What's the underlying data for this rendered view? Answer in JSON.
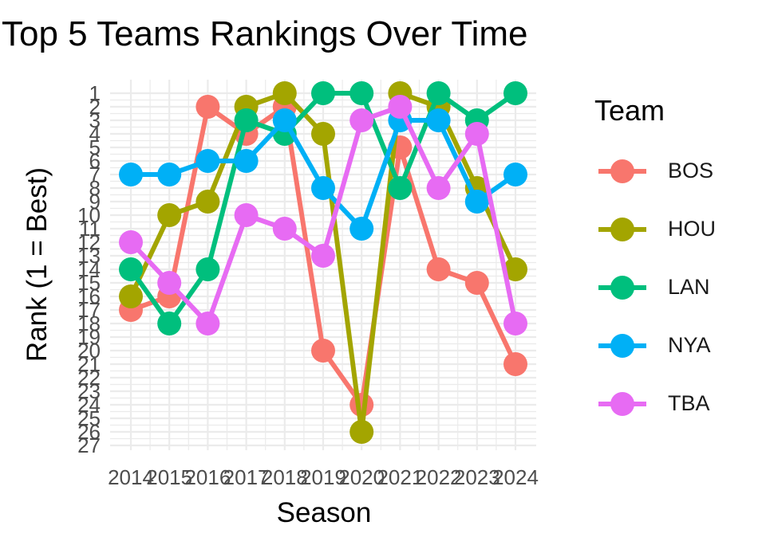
{
  "chart_data": {
    "type": "line",
    "title": "Top 5 Teams Rankings Over Time",
    "xlabel": "Season",
    "ylabel": "Rank (1 = Best)",
    "x": [
      2014,
      2015,
      2016,
      2017,
      2018,
      2019,
      2020,
      2021,
      2022,
      2023,
      2024
    ],
    "x_ticks": [
      "2014",
      "2015",
      "2016",
      "2017",
      "2018",
      "2019",
      "2020",
      "2021",
      "2022",
      "2023",
      "2024"
    ],
    "y_ticks": [
      "1",
      "2",
      "3",
      "4",
      "5",
      "6",
      "7",
      "8",
      "9",
      "10",
      "11",
      "12",
      "13",
      "14",
      "15",
      "16",
      "17",
      "18",
      "19",
      "20",
      "21",
      "22",
      "23",
      "24",
      "25",
      "26",
      "27"
    ],
    "ylim": [
      1,
      27
    ],
    "y_reversed": true,
    "grid": true,
    "legend": {
      "title": "Team",
      "position": "right"
    },
    "series": [
      {
        "name": "BOS",
        "color": "#F8766D",
        "values": [
          17,
          16,
          2,
          4,
          2,
          20,
          24,
          5,
          14,
          15,
          21
        ]
      },
      {
        "name": "HOU",
        "color": "#A3A500",
        "values": [
          16,
          10,
          9,
          2,
          1,
          4,
          26,
          1,
          2,
          8,
          14
        ]
      },
      {
        "name": "LAN",
        "color": "#00BF7D",
        "values": [
          14,
          18,
          14,
          3,
          4,
          1,
          1,
          8,
          1,
          3,
          1
        ]
      },
      {
        "name": "NYA",
        "color": "#00B0F6",
        "values": [
          7,
          7,
          6,
          6,
          3,
          8,
          11,
          3,
          3,
          9,
          7
        ]
      },
      {
        "name": "TBA",
        "color": "#E76BF3",
        "values": [
          12,
          15,
          18,
          10,
          11,
          13,
          3,
          2,
          8,
          4,
          18
        ]
      }
    ]
  }
}
